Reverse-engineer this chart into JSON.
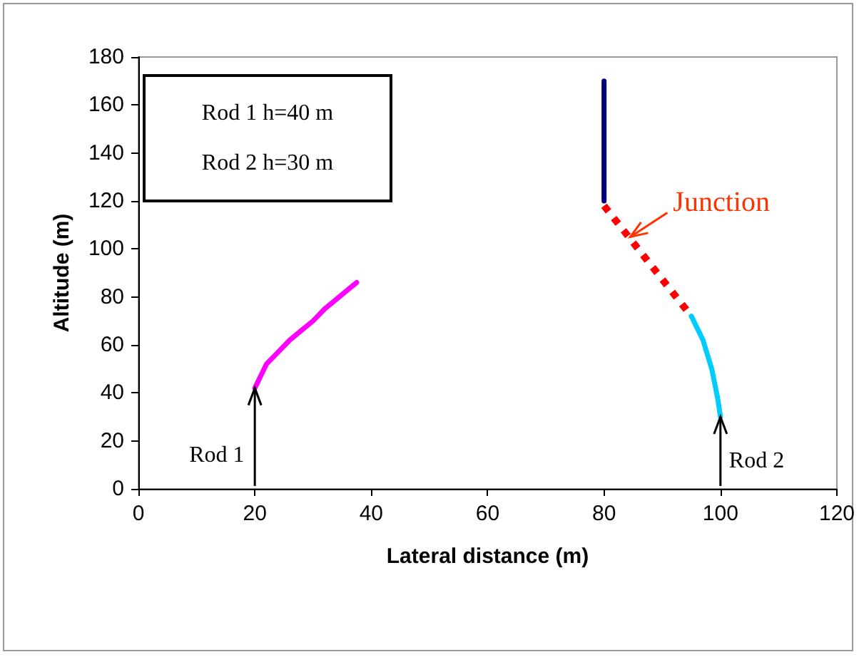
{
  "chart_data": {
    "type": "line",
    "xlabel": "Lateral distance (m)",
    "ylabel": "Altitude (m)",
    "xlim": [
      0,
      120
    ],
    "xticks": [
      0,
      20,
      40,
      60,
      80,
      100,
      120
    ],
    "ylim": [
      0,
      180
    ],
    "yticks": [
      0,
      20,
      40,
      60,
      80,
      100,
      120,
      140,
      160,
      180
    ],
    "grid": false,
    "marker": "none",
    "line_style": "solid",
    "series": [
      {
        "color": "#ff00ff",
        "x": [
          20,
          21,
          22,
          24,
          26,
          28,
          30,
          32,
          34,
          36,
          37.5
        ],
        "values": [
          42,
          47,
          52,
          57,
          62,
          66,
          70,
          75,
          79,
          83,
          86
        ]
      },
      {
        "color": "#000080",
        "x": [
          80,
          80
        ],
        "values": [
          120,
          170
        ]
      },
      {
        "color": "#ff0000",
        "line_style": "dotted",
        "x": [
          80,
          95
        ],
        "values": [
          118,
          72
        ]
      },
      {
        "color": "#00ccff",
        "x": [
          95,
          97,
          98.5,
          99.5,
          100
        ],
        "values": [
          72,
          62,
          50,
          38,
          30
        ]
      }
    ],
    "annotations": [
      "Rod 1 h=40 m",
      "Rod 2 h=30 m",
      {
        "text": "Rod 1",
        "x": 20,
        "y": 42
      },
      {
        "text": "Rod 2",
        "x": 100,
        "y": 30
      },
      {
        "text": "Junction",
        "x": 84.5,
        "y": 105
      }
    ]
  }
}
